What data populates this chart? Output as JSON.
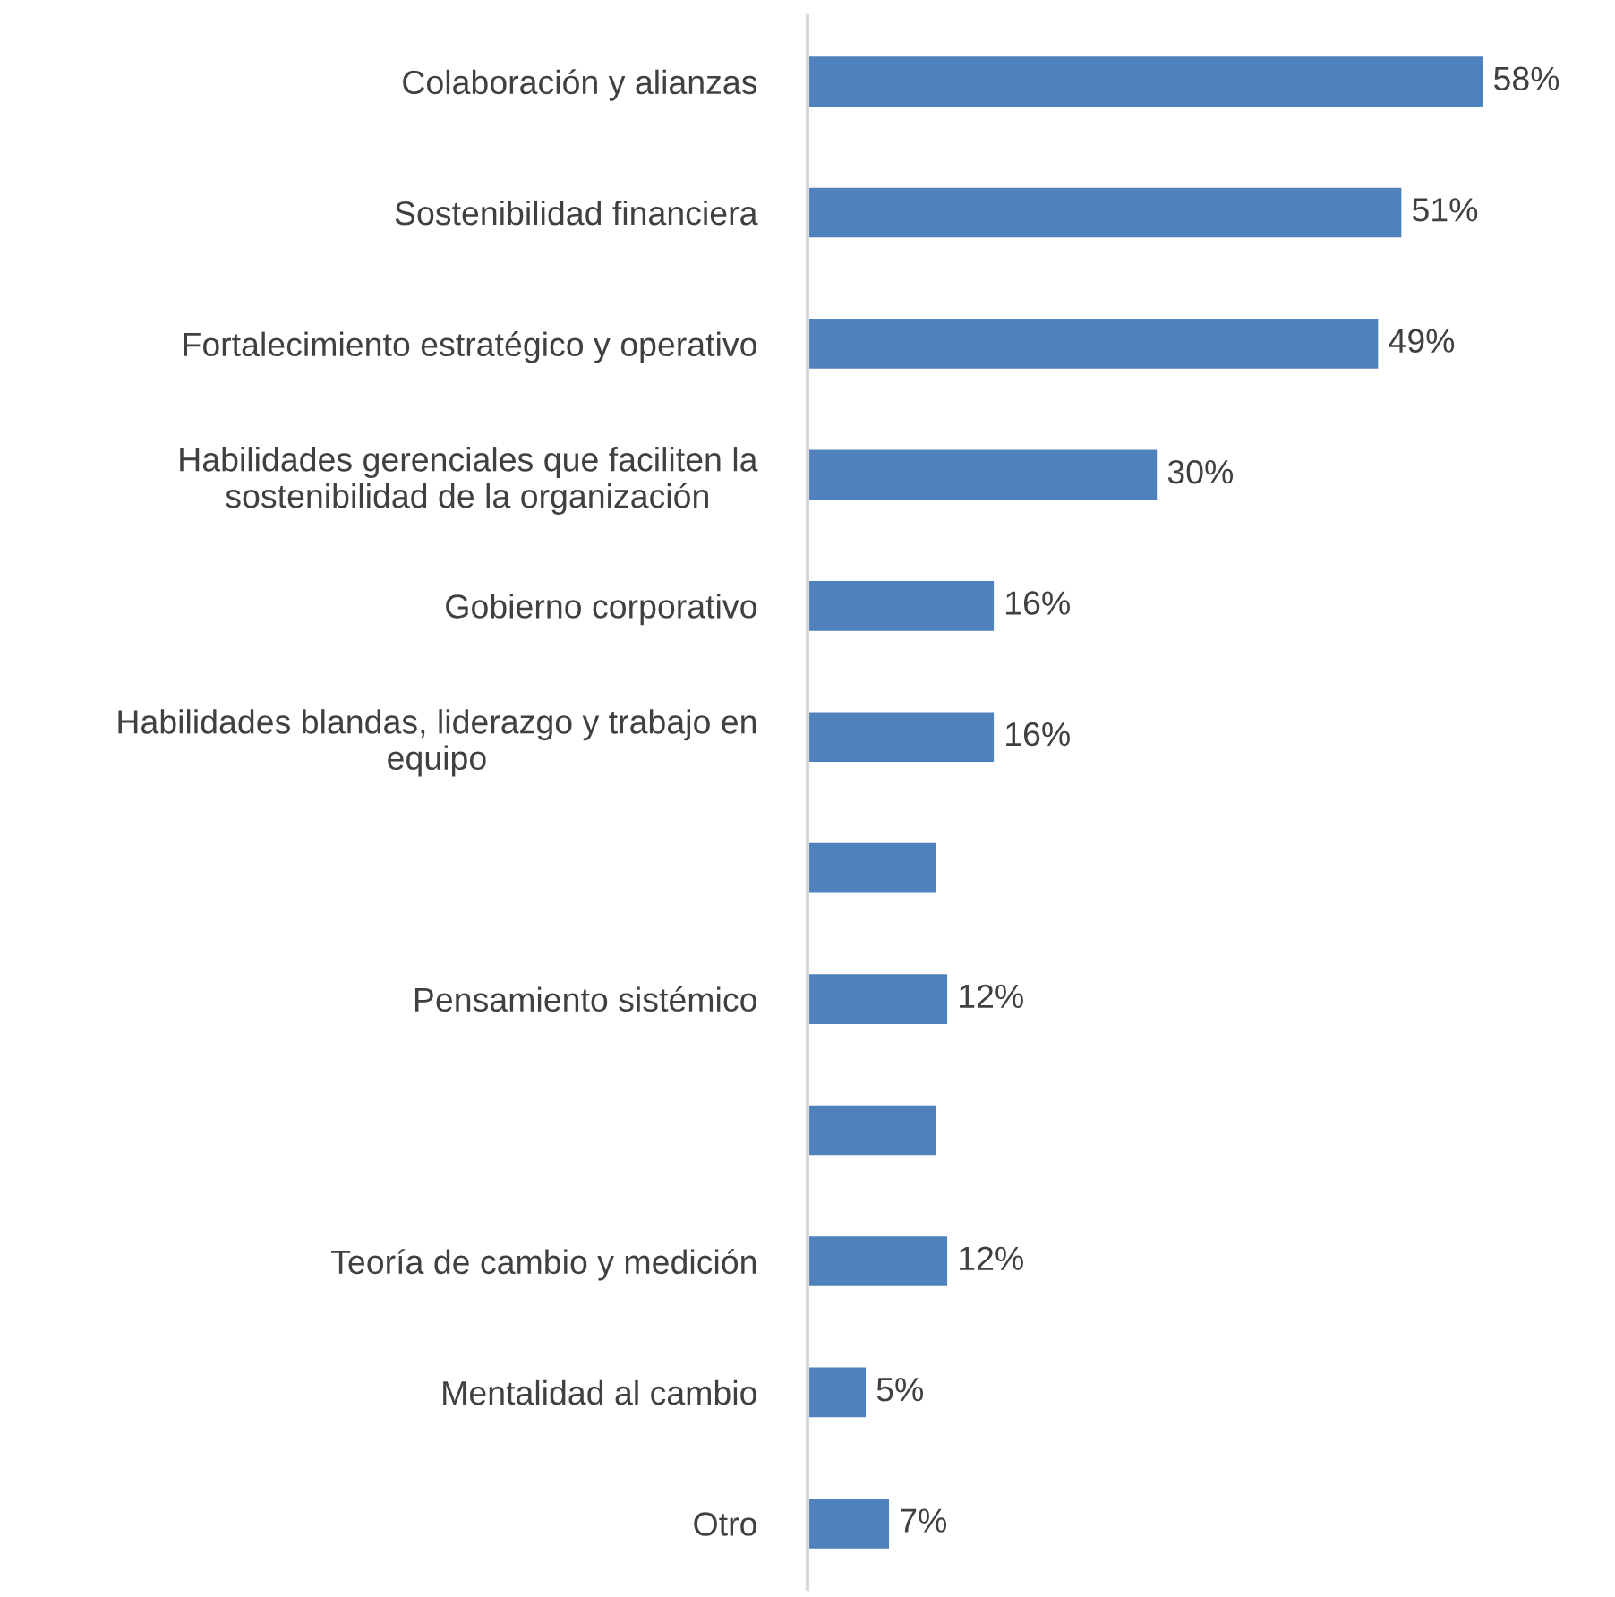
{
  "chart_data": {
    "type": "bar",
    "orientation": "horizontal",
    "categories": [
      "Colaboración y alianzas",
      "Sostenibilidad financiera",
      "Fortalecimiento estratégico y operativo",
      "Habilidades gerenciales que faciliten la\nsostenibilidad de la organización",
      "Gobierno corporativo",
      "Habilidades blandas, liderazgo y trabajo en\nequipo",
      null,
      "Pensamiento sistémico",
      null,
      "Teoría de cambio y medición",
      "Mentalidad al cambio",
      "Otro"
    ],
    "values": [
      58,
      51,
      49,
      30,
      16,
      16,
      11,
      12,
      11,
      12,
      5,
      7
    ],
    "value_labels": [
      "58%",
      "51%",
      "49%",
      "30%",
      "16%",
      "16%",
      null,
      "12%",
      null,
      "12%",
      "5%",
      "7%"
    ],
    "color": "#4f81bd",
    "tick_labels": "y",
    "grid": false,
    "legend": false
  }
}
